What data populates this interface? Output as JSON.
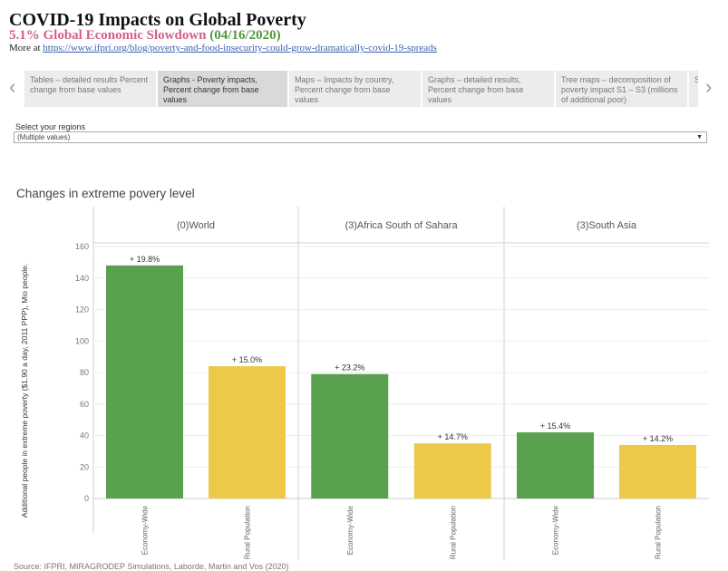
{
  "header": {
    "title": "COVID-19 Impacts on Global Poverty",
    "subtitle_pct": "5.1% Global Economic Slowdown",
    "subtitle_date": "(04/16/2020)",
    "more_prefix": "More at",
    "more_link": "https://www.ifpri.org/blog/poverty-and-food-insecurity-could-grow-dramatically-covid-19-spreads"
  },
  "tabs": [
    {
      "label": "Tables – detailed results Percent change from base values",
      "active": false
    },
    {
      "label": "Graphs - Poverty impacts, Percent change from base values",
      "active": true
    },
    {
      "label": "Maps – Impacts by country, Percent change from base values",
      "active": false
    },
    {
      "label": "Graphs – detailed results, Percent change from base values",
      "active": false
    },
    {
      "label": "Tree maps – decomposition of poverty impact S1 – S3 (millions of additional poor)",
      "active": false
    },
    {
      "label": "Sc",
      "active": false
    }
  ],
  "filter": {
    "label": "Select your regions",
    "value": "(Multiple values)"
  },
  "footer": {
    "source": "Source: IFPRI, MIRAGRODEP Simulations, Laborde, Martin and Vos (2020)"
  },
  "colors": {
    "economy_wide": "#59a14f",
    "rural": "#edc948"
  },
  "chart_data": {
    "type": "bar",
    "title": "Changes in extreme povery level",
    "ylabel": "Additional people in extreme poverty ($1.90 a day, 2011 PPP), Mio people.",
    "ylim": [
      0,
      160
    ],
    "yticks": [
      0,
      20,
      40,
      60,
      80,
      100,
      120,
      140,
      160
    ],
    "categories": [
      "Economy-Wide",
      "Rural Population"
    ],
    "panels": [
      {
        "name": "(0)World",
        "values": [
          148,
          84
        ],
        "labels": [
          "+ 19.8%",
          "+ 15.0%"
        ]
      },
      {
        "name": "(3)Africa South of Sahara",
        "values": [
          79,
          35
        ],
        "labels": [
          "+ 23.2%",
          "+ 14.7%"
        ]
      },
      {
        "name": "(3)South Asia",
        "values": [
          42,
          34
        ],
        "labels": [
          "+ 15.4%",
          "+ 14.2%"
        ]
      }
    ],
    "grid": true
  }
}
